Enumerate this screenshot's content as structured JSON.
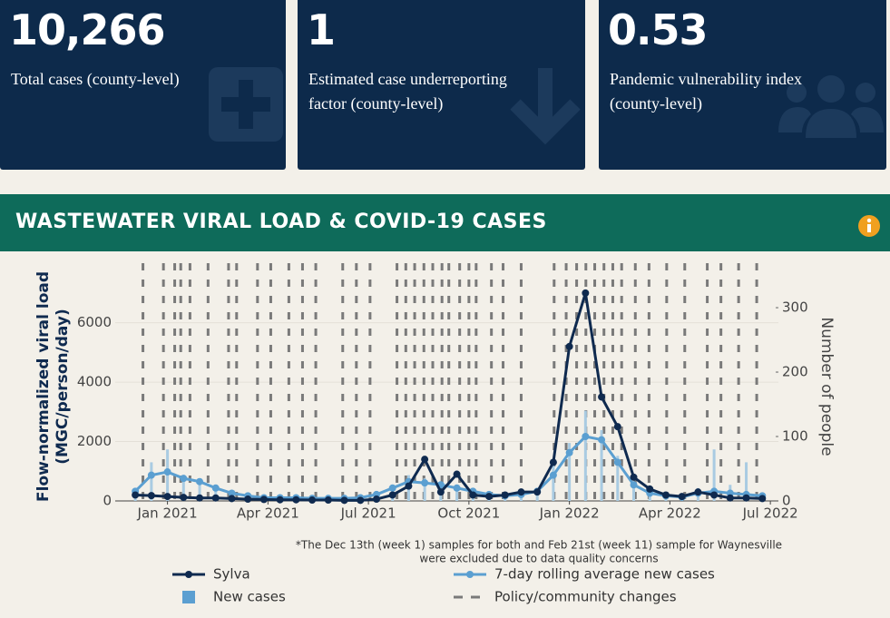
{
  "cards": [
    {
      "value": "10,266",
      "label": [
        "Total cases (county-level)"
      ]
    },
    {
      "value": "1",
      "label": [
        "Estimated case underreporting",
        "factor (county-level)"
      ]
    },
    {
      "value": "0.53",
      "label": [
        "Pandemic vulnerability index",
        "(county-level)"
      ]
    }
  ],
  "section": {
    "title": "WASTEWATER VIRAL LOAD & COVID-19 CASES"
  },
  "chart_data": {
    "type": "line",
    "ylabel": [
      "Flow-normalized viral load",
      "(MGC/person/day)"
    ],
    "y2label": "Number of people",
    "x": [
      2020.92,
      2020.96,
      2021.0,
      2021.04,
      2021.08,
      2021.12,
      2021.16,
      2021.2,
      2021.24,
      2021.28,
      2021.32,
      2021.36,
      2021.4,
      2021.44,
      2021.48,
      2021.52,
      2021.56,
      2021.6,
      2021.64,
      2021.68,
      2021.72,
      2021.76,
      2021.8,
      2021.84,
      2021.88,
      2021.92,
      2021.96,
      2022.0,
      2022.04,
      2022.08,
      2022.12,
      2022.16,
      2022.2,
      2022.24,
      2022.28,
      2022.32,
      2022.36,
      2022.4,
      2022.44,
      2022.48
    ],
    "series": [
      {
        "name": "New cases",
        "kind": "bar",
        "axis": "y2",
        "color": "#a9cbe2",
        "values": [
          20,
          60,
          80,
          40,
          35,
          25,
          15,
          10,
          6,
          5,
          6,
          4,
          5,
          3,
          6,
          12,
          25,
          40,
          35,
          30,
          22,
          18,
          12,
          10,
          12,
          20,
          55,
          90,
          140,
          110,
          70,
          30,
          15,
          10,
          8,
          20,
          80,
          25,
          60,
          12
        ]
      },
      {
        "name": "7-day rolling average new cases",
        "kind": "line",
        "axis": "y2",
        "color": "#5b9fd1",
        "values": [
          15,
          40,
          45,
          35,
          30,
          20,
          12,
          8,
          5,
          5,
          5,
          4,
          4,
          4,
          5,
          10,
          20,
          30,
          28,
          25,
          20,
          15,
          10,
          8,
          10,
          15,
          40,
          75,
          100,
          95,
          60,
          25,
          12,
          8,
          6,
          12,
          15,
          12,
          10,
          8
        ]
      },
      {
        "name": "Sylva",
        "kind": "line",
        "color": "#0f2a4f",
        "values": [
          200,
          180,
          150,
          120,
          100,
          100,
          80,
          60,
          50,
          40,
          40,
          30,
          30,
          20,
          20,
          60,
          200,
          500,
          1400,
          300,
          900,
          200,
          150,
          200,
          300,
          300,
          1300,
          5200,
          7000,
          3500,
          2500,
          800,
          400,
          200,
          150,
          300,
          200,
          100,
          100,
          80
        ]
      }
    ],
    "policy": {
      "name": "Policy/community changes",
      "color": "#7a7a7a",
      "x": [
        2020.939,
        2020.99,
        2021.018,
        2021.033,
        2021.056,
        2021.101,
        2021.152,
        2021.172,
        2021.224,
        2021.257,
        2021.302,
        2021.336,
        2021.369,
        2021.436,
        2021.47,
        2021.504,
        2021.571,
        2021.593,
        2021.615,
        2021.638,
        2021.66,
        2021.683,
        2021.7,
        2021.727,
        2021.75,
        2021.768,
        2021.806,
        2021.835,
        2021.88,
        2021.962,
        2021.992,
        2022.018,
        2022.041,
        2022.063,
        2022.086,
        2022.108,
        2022.13,
        2022.164,
        2022.198,
        2022.242,
        2022.287,
        2022.343,
        2022.377,
        2022.421,
        2022.466
      ]
    },
    "xlim": [
      2020.87,
      2022.52
    ],
    "xticks": [
      {
        "value": 2021.0,
        "label": "Jan 2021"
      },
      {
        "value": 2021.25,
        "label": "Apr 2021"
      },
      {
        "value": 2021.5,
        "label": "Jul 2021"
      },
      {
        "value": 2021.75,
        "label": "Oct 2021"
      },
      {
        "value": 2022.0,
        "label": "Jan 2022"
      },
      {
        "value": 2022.25,
        "label": "Apr 2022"
      },
      {
        "value": 2022.5,
        "label": "Jul 2022"
      }
    ],
    "ylim": [
      0,
      7700
    ],
    "yticks": [
      0,
      2000,
      4000,
      6000
    ],
    "y2lim": [
      0,
      355
    ],
    "y2ticks": [
      0,
      100,
      200,
      300
    ],
    "grid": true,
    "note": [
      "*The Dec 13th (week 1) samples for both and Feb 21st (week 11) sample for Waynesville",
      "were excluded due to data quality concerns"
    ]
  }
}
